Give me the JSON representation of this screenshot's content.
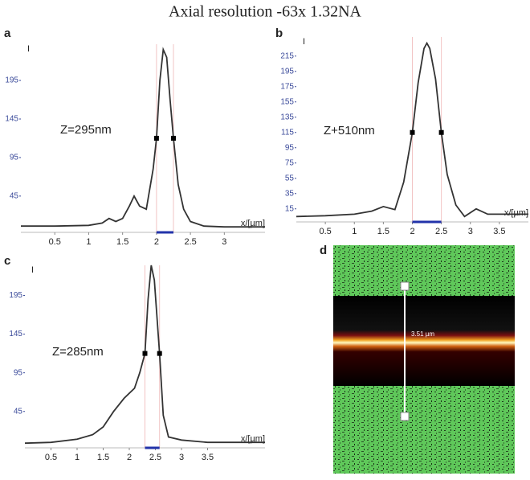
{
  "title": "Axial resolution -63x 1.32NA",
  "chart_data": [
    {
      "type": "line",
      "label": "a",
      "annotation": "Z=295nm",
      "x_label": "x/[µm]",
      "y_label": "I",
      "x": [
        0,
        0.5,
        1.0,
        1.2,
        1.3,
        1.4,
        1.5,
        1.6,
        1.67,
        1.75,
        1.85,
        1.95,
        2.0,
        2.05,
        2.1,
        2.15,
        2.2,
        2.25,
        2.32,
        2.4,
        2.5,
        2.7,
        3.0,
        3.3,
        3.6
      ],
      "series": [
        {
          "color": "#333333",
          "values": [
            6,
            6,
            7,
            10,
            16,
            12,
            16,
            32,
            45,
            32,
            28,
            80,
            120,
            195,
            235,
            225,
            170,
            120,
            60,
            28,
            12,
            6,
            5,
            5,
            5
          ]
        }
      ],
      "xlim": [
        0,
        3.6
      ],
      "ylim": [
        0,
        242
      ],
      "xticks": [
        0.5,
        1,
        1.5,
        2,
        2.5,
        3
      ],
      "yticks": [
        45,
        95,
        145,
        195
      ],
      "fwhm": {
        "x": [
          2.0,
          2.25
        ],
        "y": [
          120,
          120
        ]
      }
    },
    {
      "type": "line",
      "label": "b",
      "annotation": "Z+510nm",
      "x_label": "x/[µm]",
      "y_label": "I",
      "x": [
        0,
        0.5,
        1.0,
        1.3,
        1.5,
        1.7,
        1.85,
        2.0,
        2.1,
        2.2,
        2.25,
        2.3,
        2.4,
        2.5,
        2.6,
        2.75,
        2.9,
        3.1,
        3.3,
        3.6,
        4.0
      ],
      "series": [
        {
          "color": "#333333",
          "values": [
            5,
            6,
            8,
            12,
            18,
            14,
            50,
            115,
            180,
            225,
            232,
            225,
            185,
            115,
            60,
            20,
            5,
            15,
            8,
            8,
            8
          ]
        }
      ],
      "xlim": [
        0,
        4.0
      ],
      "ylim": [
        0,
        240
      ],
      "xticks": [
        0.5,
        1,
        1.5,
        2,
        2.5,
        3,
        3.5
      ],
      "yticks": [
        15,
        35,
        55,
        75,
        95,
        115,
        135,
        155,
        175,
        195,
        215
      ],
      "fwhm": {
        "x": [
          2.0,
          2.5
        ],
        "y": [
          115,
          115
        ]
      }
    },
    {
      "type": "line",
      "label": "c",
      "annotation": "Z=285nm",
      "x_label": "x/[µm]",
      "y_label": "I",
      "x": [
        0,
        0.5,
        1.0,
        1.3,
        1.5,
        1.7,
        1.9,
        2.1,
        2.2,
        2.3,
        2.36,
        2.42,
        2.48,
        2.58,
        2.65,
        2.75,
        3.0,
        3.5,
        4.6
      ],
      "series": [
        {
          "color": "#333333",
          "values": [
            4,
            5,
            9,
            15,
            25,
            45,
            62,
            75,
            95,
            120,
            190,
            234,
            215,
            120,
            40,
            12,
            8,
            5,
            5
          ]
        }
      ],
      "xlim": [
        0,
        4.6
      ],
      "ylim": [
        0,
        234
      ],
      "xticks": [
        0.5,
        1,
        1.5,
        2,
        2.5,
        3,
        3.5
      ],
      "yticks": [
        45,
        95,
        145,
        195
      ],
      "fwhm": {
        "x": [
          2.3,
          2.58
        ],
        "y": [
          120,
          120
        ]
      }
    }
  ],
  "image_panel": {
    "label": "d",
    "scale_label": "3.51 µm"
  }
}
